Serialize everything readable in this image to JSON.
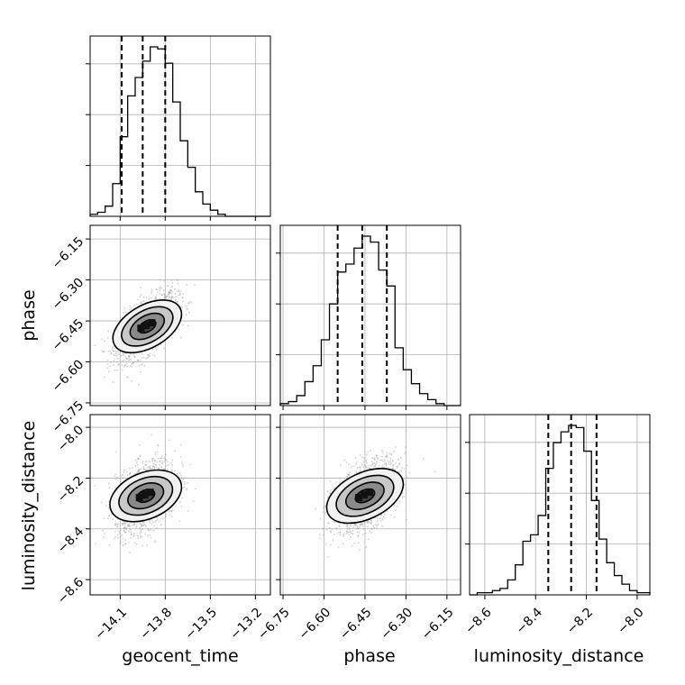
{
  "chart_data": {
    "type": "corner",
    "title": "",
    "parameters": [
      "geocent_time",
      "phase",
      "luminosity_distance"
    ],
    "labels": {
      "x_bottom": [
        "geocent_time",
        "phase",
        "luminosity_distance"
      ],
      "y_left": [
        "phase",
        "luminosity_distance"
      ]
    },
    "ranges": {
      "geocent_time": [
        -14.3,
        -13.1
      ],
      "phase": [
        -6.76,
        -6.1
      ],
      "luminosity_distance": [
        -8.66,
        -7.95
      ]
    },
    "ticks": {
      "geocent_time": [
        -14.1,
        -13.8,
        -13.5,
        -13.2
      ],
      "geocent_time_labels": [
        "−14.1",
        "−13.8",
        "−13.5",
        "−13.2"
      ],
      "phase_x": [
        -6.75,
        -6.6,
        -6.45,
        -6.3,
        -6.15
      ],
      "phase_x_labels": [
        "−6.75",
        "−6.60",
        "−6.45",
        "−6.30",
        "−6.15"
      ],
      "phase_y": [
        -6.15,
        -6.3,
        -6.45,
        -6.6,
        -6.75
      ],
      "phase_y_labels": [
        "−6.15",
        "−6.30",
        "−6.45",
        "−6.60",
        "−6.75"
      ],
      "luminosity_distance_x": [
        -8.6,
        -8.4,
        -8.2,
        -8.0
      ],
      "luminosity_distance_x_labels": [
        "−8.6",
        "−8.4",
        "−8.2",
        "−8.0"
      ],
      "luminosity_distance_y": [
        -8.0,
        -8.2,
        -8.4,
        -8.6
      ],
      "luminosity_distance_y_labels": [
        "−8.0",
        "−8.2",
        "−8.4",
        "−8.6"
      ]
    },
    "histograms": {
      "geocent_time": {
        "bin_edges": [
          -14.3,
          -14.25,
          -14.2,
          -14.15,
          -14.1,
          -14.05,
          -14.0,
          -13.95,
          -13.9,
          -13.85,
          -13.8,
          -13.75,
          -13.7,
          -13.65,
          -13.6,
          -13.55,
          -13.5,
          -13.45,
          -13.4,
          -13.35,
          -13.3,
          -13.25,
          -13.2,
          -13.15,
          -13.1
        ],
        "counts": [
          1,
          2,
          5,
          16,
          39,
          59,
          68,
          76,
          83,
          82,
          75,
          56,
          37,
          24,
          12,
          6,
          3,
          1,
          0,
          0,
          0,
          0,
          0,
          0
        ],
        "quantiles": [
          -14.09,
          -13.95,
          -13.8
        ]
      },
      "phase": {
        "bin_edges": [
          -6.76,
          -6.73,
          -6.7,
          -6.67,
          -6.64,
          -6.61,
          -6.58,
          -6.55,
          -6.52,
          -6.49,
          -6.46,
          -6.43,
          -6.4,
          -6.37,
          -6.34,
          -6.31,
          -6.28,
          -6.25,
          -6.22,
          -6.19,
          -6.16,
          -6.13,
          -6.1
        ],
        "counts": [
          1,
          2,
          5,
          12,
          20,
          33,
          51,
          67,
          71,
          79,
          85,
          82,
          68,
          60,
          29,
          18,
          11,
          6,
          3,
          1,
          0,
          0
        ],
        "quantiles": [
          -6.55,
          -6.46,
          -6.37
        ]
      },
      "luminosity_distance": {
        "bin_edges": [
          -8.66,
          -8.63,
          -8.6,
          -8.57,
          -8.54,
          -8.51,
          -8.48,
          -8.45,
          -8.42,
          -8.39,
          -8.36,
          -8.33,
          -8.3,
          -8.27,
          -8.24,
          -8.21,
          -8.18,
          -8.15,
          -8.12,
          -8.09,
          -8.06,
          -8.03,
          -8.0,
          -7.97,
          -7.95
        ],
        "counts": [
          0,
          1,
          1,
          2,
          3,
          7,
          14,
          25,
          28,
          37,
          59,
          71,
          76,
          79,
          78,
          67,
          44,
          26,
          15,
          9,
          5,
          2,
          1,
          1
        ],
        "quantiles": [
          -8.35,
          -8.26,
          -8.16
        ]
      }
    },
    "joint": [
      {
        "x": "geocent_time",
        "y": "phase",
        "center": [
          -13.92,
          -6.47
        ],
        "sd": [
          0.1,
          0.06
        ],
        "corr": 0.6
      },
      {
        "x": "geocent_time",
        "y": "luminosity_distance",
        "center": [
          -13.93,
          -8.27
        ],
        "sd": [
          0.1,
          0.07
        ],
        "corr": 0.4
      },
      {
        "x": "phase",
        "y": "luminosity_distance",
        "center": [
          -6.45,
          -8.27
        ],
        "sd": [
          0.06,
          0.07
        ],
        "corr": 0.5
      }
    ],
    "contour_levels": [
      0.5,
      1.0,
      1.5,
      2.0
    ],
    "grid": true,
    "legend": "none"
  }
}
